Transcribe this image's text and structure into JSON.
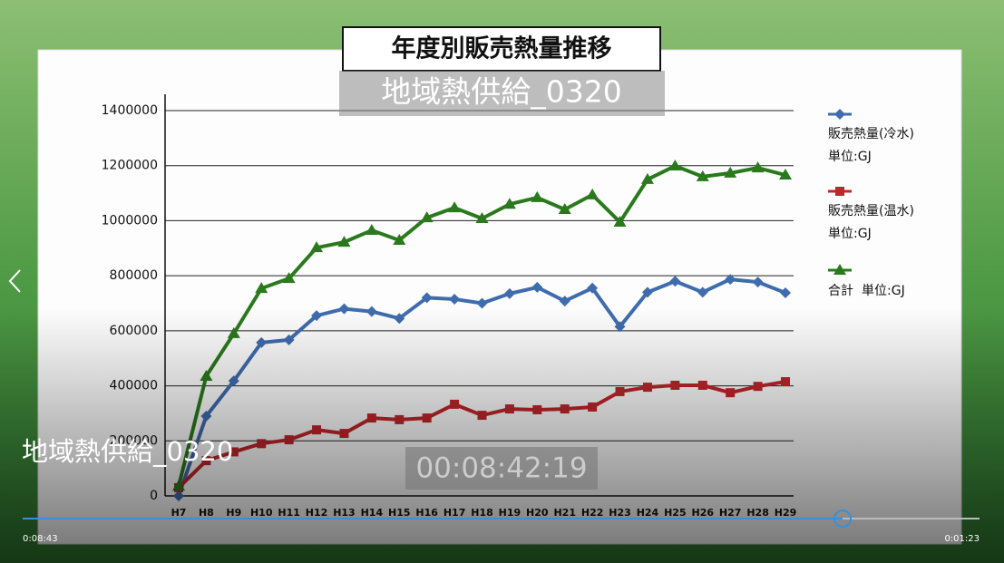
{
  "player": {
    "overlay_title": "地域熱供給_0320",
    "video_title": "地域熱供給_0320",
    "timecode": "00:08:42:19",
    "elapsed": "0:08:43",
    "remaining": "0:01:23"
  },
  "chart_data": {
    "type": "line",
    "title": "年度別販売熱量推移",
    "categories": [
      "H7",
      "H8",
      "H9",
      "H10",
      "H11",
      "H12",
      "H13",
      "H14",
      "H15",
      "H16",
      "H17",
      "H18",
      "H19",
      "H20",
      "H21",
      "H22",
      "H23",
      "H24",
      "H25",
      "H26",
      "H27",
      "H28",
      "H29"
    ],
    "series": [
      {
        "name": "販売熱量(冷水)",
        "unit": "単位:GJ",
        "color": "#3f6cae",
        "marker": "diamond",
        "values": [
          0,
          290000,
          418000,
          557000,
          567000,
          655000,
          680000,
          670000,
          645000,
          720000,
          715000,
          700000,
          735000,
          758000,
          708000,
          755000,
          615000,
          740000,
          780000,
          740000,
          787000,
          777000,
          738000
        ]
      },
      {
        "name": "販売熱量(温水)",
        "unit": "単位:GJ",
        "color": "#c0262b",
        "marker": "square",
        "values": [
          30000,
          128000,
          160000,
          190000,
          204000,
          240000,
          227000,
          283000,
          277000,
          283000,
          333000,
          293000,
          316000,
          313000,
          316000,
          323000,
          379000,
          395000,
          402000,
          402000,
          375000,
          398000,
          415000
        ]
      },
      {
        "name": "合計",
        "unit": "単位:GJ",
        "color": "#2a7a1d",
        "marker": "triangle",
        "values": [
          36000,
          435000,
          590000,
          754000,
          790000,
          902000,
          922000,
          965000,
          929000,
          1011000,
          1047000,
          1008000,
          1060000,
          1084000,
          1041000,
          1094000,
          995000,
          1150000,
          1199000,
          1160000,
          1173000,
          1192000,
          1166000
        ]
      }
    ],
    "ylim": [
      0,
      1400000
    ],
    "yticks": [
      0,
      200000,
      400000,
      600000,
      800000,
      1000000,
      1200000,
      1400000
    ],
    "grid": true
  }
}
